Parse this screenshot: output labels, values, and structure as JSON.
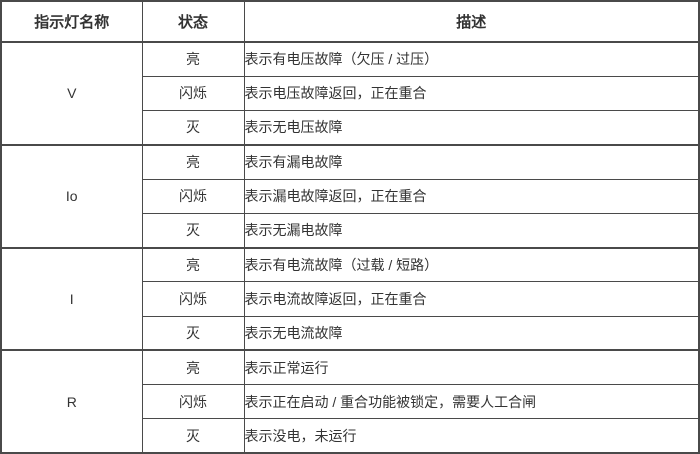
{
  "table": {
    "headers": {
      "name": "指示灯名称",
      "state": "状态",
      "description": "描述"
    },
    "groups": [
      {
        "name": "V",
        "rows": [
          {
            "state": "亮",
            "desc": "表示有电压故障（欠压 / 过压）"
          },
          {
            "state": "闪烁",
            "desc": "表示电压故障返回，正在重合"
          },
          {
            "state": "灭",
            "desc": "表示无电压故障"
          }
        ]
      },
      {
        "name": "Io",
        "rows": [
          {
            "state": "亮",
            "desc": "表示有漏电故障"
          },
          {
            "state": "闪烁",
            "desc": "表示漏电故障返回，正在重合"
          },
          {
            "state": "灭",
            "desc": "表示无漏电故障"
          }
        ]
      },
      {
        "name": "I",
        "rows": [
          {
            "state": "亮",
            "desc": "表示有电流故障（过载 / 短路）"
          },
          {
            "state": "闪烁",
            "desc": "表示电流故障返回，正在重合"
          },
          {
            "state": "灭",
            "desc": "表示无电流故障"
          }
        ]
      },
      {
        "name": "R",
        "rows": [
          {
            "state": "亮",
            "desc": "表示正常运行"
          },
          {
            "state": "闪烁",
            "desc": "表示正在启动 / 重合功能被锁定，需要人工合闸"
          },
          {
            "state": "灭",
            "desc": "表示没电，未运行"
          }
        ]
      }
    ],
    "colors": {
      "border": "#4a4a4a",
      "text": "#333333",
      "background": "#ffffff"
    }
  }
}
